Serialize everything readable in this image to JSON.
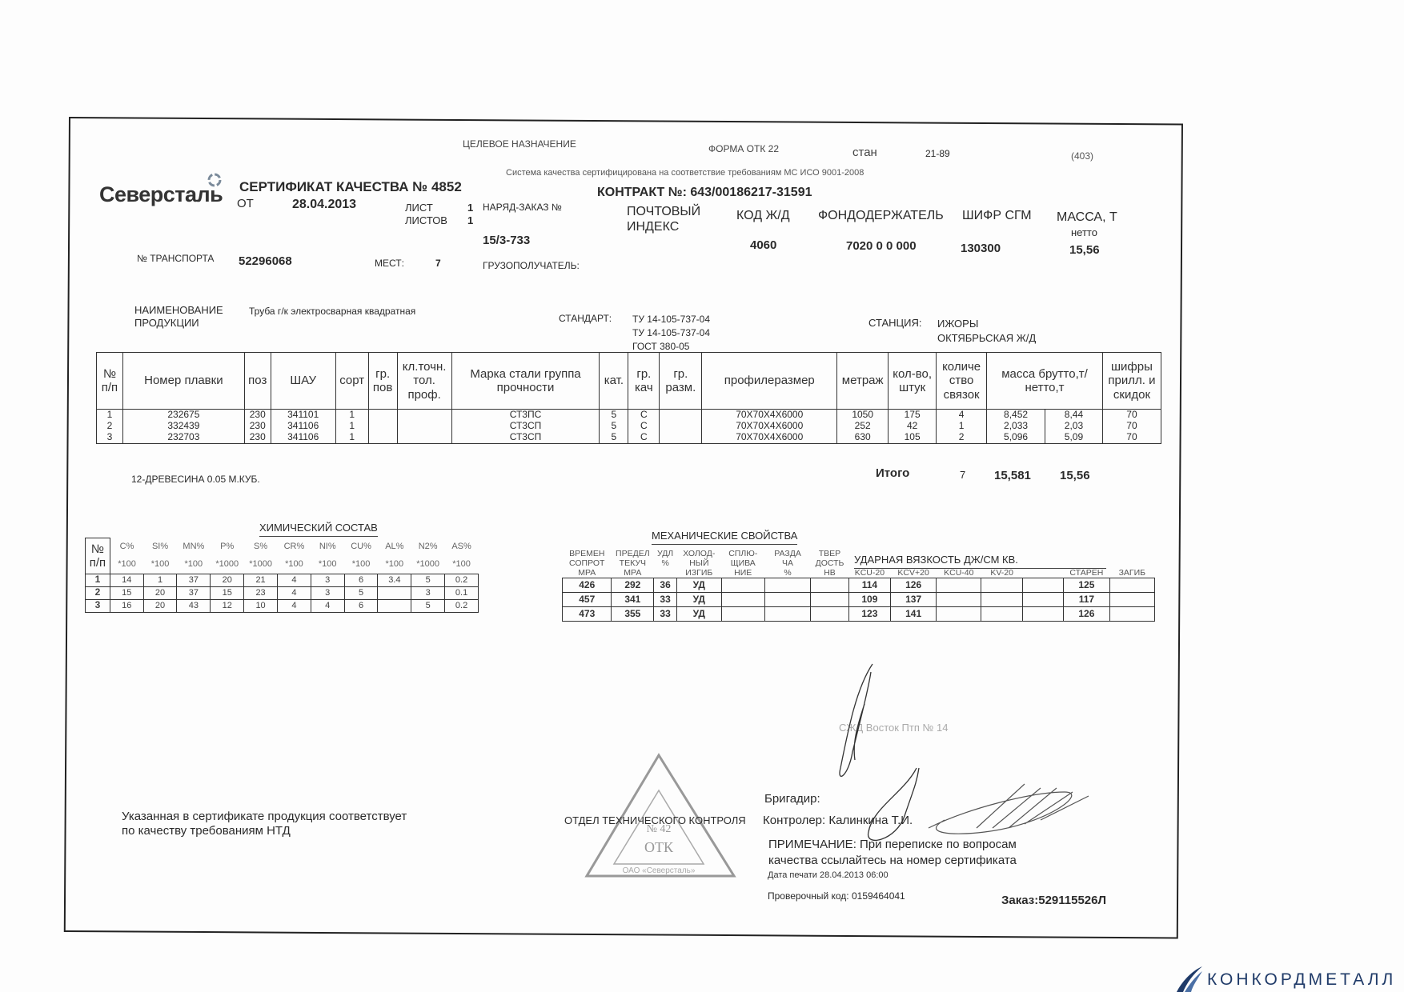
{
  "header": {
    "target_purpose": "ЦЕЛЕВОЕ НАЗНАЧЕНИЕ",
    "form": "ФОРМА ОТК 22",
    "mill_label": "стан",
    "mill_value": "21-89",
    "code": "(403)",
    "iso_note": "Система качества сертифицирована на соответствие требованиям МС ИСО 9001-2008",
    "logo": "Северсталь",
    "certificate_title": "СЕРТИФИКАТ КАЧЕСТВА № 4852",
    "contract": "КОНТРАКТ №: 643/00186217-31591",
    "from_label": "ОТ",
    "date": "28.04.2013",
    "sheet_label": "ЛИСТ",
    "sheet_value": "1",
    "sheets_label": "ЛИСТОВ",
    "sheets_value": "1",
    "order_label": "НАРЯД-ЗАКАЗ №",
    "order_value": "15/3-733",
    "postal_label_1": "ПОЧТОВЫЙ",
    "postal_label_2": "ИНДЕКС",
    "rail_code_label": "КОД Ж/Д",
    "rail_code_value": "4060",
    "fund_holder_label": "ФОНДОДЕРЖАТЕЛЬ",
    "fund_holder_value": "7020 0 0 000",
    "sgm_label": "ШИФР СГМ",
    "sgm_value": "130300",
    "mass_label": "МАССА, Т",
    "mass_sub": "нетто",
    "mass_value": "15,56",
    "transport_label": "№ ТРАНСПОРТА",
    "transport_value": "52296068",
    "places_label": "МЕСТ:",
    "places_value": "7",
    "consignee_label": "ГРУЗОПОЛУЧАТЕЛЬ:",
    "product_label_1": "НАИМЕНОВАНИЕ",
    "product_label_2": "ПРОДУКЦИИ",
    "product_value": "Труба г/к электросварная квадратная",
    "standard_label": "СТАНДАРТ:",
    "standards": [
      "ТУ 14-105-737-04",
      "ТУ 14-105-737-04",
      "ГОСТ 380-05"
    ],
    "station_label": "СТАНЦИЯ:",
    "station_value_1": "ИЖОРЫ",
    "station_value_2": "ОКТЯБРЬСКАЯ Ж/Д"
  },
  "main_table": {
    "columns": [
      "№ п/п",
      "Номер плавки",
      "поз",
      "ШАУ",
      "сорт",
      "гр. пов",
      "кл.точн. тол. проф.",
      "Марка стали группа прочности",
      "кат.",
      "гр. кач",
      "гр. разм.",
      "профилеразмер",
      "метраж",
      "кол-во, штук",
      "количе ство связок",
      "масса брутто,т/нетто,т",
      "шифры прилл. и скидок"
    ],
    "rows": [
      [
        "1",
        "232675",
        "230",
        "341101",
        "1",
        "",
        "",
        "СТ3ПС",
        "5",
        "С",
        "",
        "70Х70Х4Х6000",
        "1050",
        "175",
        "4",
        "8,452",
        "8,44",
        "70"
      ],
      [
        "2",
        "332439",
        "230",
        "341106",
        "1",
        "",
        "",
        "СТ3СП",
        "5",
        "С",
        "",
        "70Х70Х4Х6000",
        "252",
        "42",
        "1",
        "2,033",
        "2,03",
        "70"
      ],
      [
        "3",
        "232703",
        "230",
        "341106",
        "1",
        "",
        "",
        "СТ3СП",
        "5",
        "С",
        "",
        "70Х70Х4Х6000",
        "630",
        "105",
        "2",
        "5,096",
        "5,09",
        "70"
      ]
    ],
    "total_label": "Итого",
    "total_bundles": "7",
    "total_gross": "15,581",
    "total_net": "15,56",
    "packing_note": "12-ДРЕВЕСИНА 0.05 М.КУБ."
  },
  "chemistry": {
    "title": "ХИМИЧЕСКИЙ СОСТАВ",
    "no_label": "№ п/п",
    "elements": [
      "C%",
      "SI%",
      "MN%",
      "P%",
      "S%",
      "CR%",
      "NI%",
      "CU%",
      "AL%",
      "N2%",
      "AS%"
    ],
    "multipliers": [
      "*100",
      "*100",
      "*100",
      "*1000",
      "*1000",
      "*100",
      "*100",
      "*100",
      "*100",
      "*1000",
      "*100"
    ],
    "rows": [
      [
        "1",
        "14",
        "1",
        "37",
        "20",
        "21",
        "4",
        "3",
        "6",
        "3.4",
        "5",
        "0.2"
      ],
      [
        "2",
        "15",
        "20",
        "37",
        "15",
        "23",
        "4",
        "3",
        "5",
        "",
        "3",
        "0.1"
      ],
      [
        "3",
        "16",
        "20",
        "43",
        "12",
        "10",
        "4",
        "4",
        "6",
        "",
        "5",
        "0.2"
      ]
    ]
  },
  "mechanical": {
    "title": "МЕХАНИЧЕСКИЕ СВОЙСТВА",
    "impact_title": "УДАРНАЯ ВЯЗКОСТЬ ДЖ/СМ КВ.",
    "headers_line1": [
      "ВРЕМЕН",
      "ПРЕДЕЛ",
      "УДЛ",
      "ХОЛОД-",
      "СПЛЮ-",
      "РАЗДА",
      "ТВЕР",
      "",
      "",
      "",
      "",
      "",
      "",
      ""
    ],
    "headers_line2": [
      "СОПРОТ",
      "ТЕКУЧ",
      "%",
      "НЫЙ",
      "ЩИВА",
      "ЧА",
      "ДОСТЬ",
      "",
      "",
      "",
      "",
      "",
      "",
      ""
    ],
    "headers_line3": [
      "МРА",
      "МРА",
      "",
      "ИЗГИБ",
      "НИЕ",
      "%",
      "НВ",
      "KCU-20",
      "KCV+20",
      "KCU-40",
      "KV-20",
      "",
      "СТАРЕН",
      "ЗАГИБ"
    ],
    "rows": [
      [
        "426",
        "292",
        "36",
        "УД",
        "",
        "",
        "",
        "114",
        "126",
        "",
        "",
        "",
        "125",
        ""
      ],
      [
        "457",
        "341",
        "33",
        "УД",
        "",
        "",
        "",
        "109",
        "137",
        "",
        "",
        "",
        "117",
        ""
      ],
      [
        "473",
        "355",
        "33",
        "УД",
        "",
        "",
        "",
        "123",
        "141",
        "",
        "",
        "",
        "126",
        ""
      ]
    ]
  },
  "footer": {
    "conformity_1": "Указанная в сертификате продукция соответствует",
    "conformity_2": "по качеству требованиям НТД",
    "department": "ОТДЕЛ ТЕХНИЧЕСКОГО КОНТРОЛЯ",
    "stamp_text": [
      "№ 42",
      "ОТК",
      "ОАО «Северсталь»"
    ],
    "rail_stamp": "СЖД Восток Птп № 14",
    "foreman_label": "Бригадир:",
    "controller": "Контролер: Калинкина Т.И.",
    "note_1": "ПРИМЕЧАНИЕ: При переписке по вопросам",
    "note_2": "качества ссылайтесь на номер сертификата",
    "print_date": "Дата печати 28.04.2013 06:00",
    "check_code": "Проверочный код: 0159464041",
    "order": "Заказ:529115526Л"
  },
  "watermark": "КОНКОРДМЕТАЛЛ"
}
